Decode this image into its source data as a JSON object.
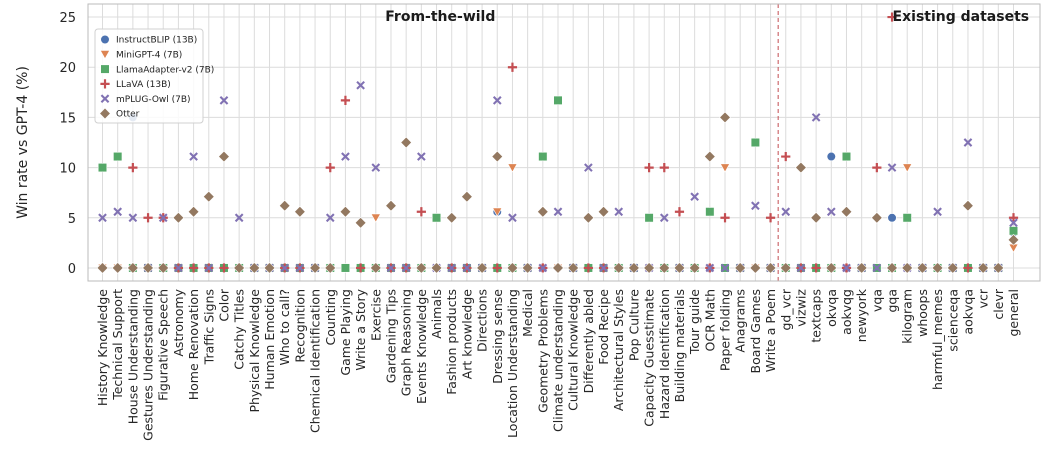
{
  "chart_data": {
    "type": "scatter",
    "ylabel": "Win rate vs GPT-4 (%)",
    "ylim": [
      -1.3,
      26.3
    ],
    "yticks": [
      0,
      5,
      10,
      15,
      20,
      25
    ],
    "grid": true,
    "legend_position": "top-left",
    "sections": [
      {
        "label": "From-the-wild"
      },
      {
        "label": "Existing datasets"
      }
    ],
    "divider_after": "Write a Poem",
    "divider_color": "#c44e52",
    "categories": [
      "History Knowledge",
      "Technical Support",
      "House Understanding",
      "Gestures Understanding",
      "Figurative Speech",
      "Astronomy",
      "Home Renovation",
      "Traffic Signs",
      "Color",
      "Catchy Titles",
      "Physical Knowledge",
      "Human Emotion",
      "Who to call?",
      "Recognition",
      "Chemical Identification",
      "Counting",
      "Game Playing",
      "Write a Story",
      "Exercise",
      "Gardening Tips",
      "Graph Reasoning",
      "Events Knowledge",
      "Animals",
      "Fashion products",
      "Art knowledge",
      "Directions",
      "Dressing sense",
      "Location Understanding",
      "Medical",
      "Geometry Problems",
      "Climate understanding",
      "Cultural Knowledge",
      "Differently abled",
      "Food Recipe",
      "Architectural Styles",
      "Pop Culture",
      "Capacity Guesstimate",
      "Hazard Identification",
      "Building materials",
      "Tour guide",
      "OCR Math",
      "Paper folding",
      "Anagrams",
      "Board Games",
      "Write a Poem",
      "gd_vcr",
      "vizwiz",
      "textcaps",
      "okvqa",
      "aokvqg",
      "newyork",
      "vqa",
      "gqa",
      "kilogram",
      "whoops",
      "harmful_memes",
      "scienceqa",
      "aokvqa",
      "vcr",
      "clevr",
      "general"
    ],
    "series": [
      {
        "name": "InstructBLIP (13B)",
        "color": "#4c72b0",
        "marker": "circle",
        "values": [
          0,
          0,
          15,
          0,
          0,
          0,
          0,
          0,
          0,
          0,
          0,
          0,
          0,
          0,
          0,
          0,
          0,
          0,
          0,
          0,
          0,
          0,
          0,
          0,
          0,
          0,
          5.6,
          0,
          0,
          0,
          0,
          0,
          0,
          0,
          0,
          0,
          0,
          0,
          0,
          0,
          0,
          0,
          0,
          0,
          0,
          0,
          0,
          0,
          11.1,
          0,
          0,
          0,
          5,
          0,
          0,
          0,
          0,
          0,
          0,
          0,
          3.5
        ]
      },
      {
        "name": "MiniGPT-4 (7B)",
        "color": "#dd8452",
        "marker": "triangle-down",
        "values": [
          0,
          0,
          0,
          0,
          0,
          0,
          0,
          0,
          0,
          0,
          0,
          0,
          0,
          0,
          0,
          0,
          0,
          0,
          5,
          0,
          0,
          0,
          0,
          0,
          0,
          0,
          5.6,
          10,
          0,
          0,
          0,
          0,
          0,
          0,
          0,
          0,
          0,
          0,
          0,
          0,
          0,
          10,
          0,
          0,
          0,
          0,
          0,
          0,
          0,
          0,
          0,
          0,
          0,
          10,
          0,
          0,
          0,
          0,
          0,
          0,
          2
        ]
      },
      {
        "name": "LlamaAdapter-v2 (7B)",
        "color": "#55a868",
        "marker": "square",
        "values": [
          10,
          11.1,
          0,
          0,
          0,
          0,
          0,
          0,
          0,
          0,
          0,
          0,
          0,
          0,
          0,
          0,
          0,
          0,
          0,
          0,
          0,
          0,
          5,
          0,
          0,
          0,
          0,
          0,
          0,
          11.1,
          16.7,
          0,
          0,
          0,
          0,
          0,
          5,
          0,
          0,
          0,
          5.6,
          0,
          0,
          12.5,
          0,
          0,
          0,
          0,
          0,
          11.1,
          0,
          0,
          0,
          5,
          0,
          0,
          0,
          0,
          0,
          0,
          3.7
        ]
      },
      {
        "name": "LLaVA (13B)",
        "color": "#c44e52",
        "marker": "plus",
        "values": [
          0,
          0,
          10,
          5,
          5,
          0,
          0,
          0,
          0,
          0,
          0,
          0,
          0,
          0,
          0,
          10,
          16.7,
          0,
          0,
          0,
          0,
          5.6,
          0,
          0,
          0,
          0,
          0,
          20,
          0,
          0,
          0,
          0,
          0,
          0,
          0,
          0,
          10,
          10,
          5.6,
          0,
          0,
          5,
          0,
          0,
          5,
          11.1,
          0,
          0,
          0,
          0,
          0,
          10,
          25,
          0,
          0,
          0,
          0,
          0,
          0,
          0,
          5
        ]
      },
      {
        "name": "mPLUG-Owl (7B)",
        "color": "#8172b3",
        "marker": "x",
        "values": [
          5,
          5.6,
          5,
          0,
          5,
          0,
          11.1,
          0,
          16.7,
          5,
          0,
          0,
          0,
          0,
          0,
          5,
          11.1,
          18.2,
          10,
          0,
          0,
          11.1,
          0,
          0,
          0,
          0,
          16.7,
          5,
          0,
          0,
          5.6,
          0,
          10,
          0,
          5.6,
          0,
          0,
          5,
          0,
          7.1,
          0,
          0,
          0,
          6.2,
          0,
          5.6,
          0,
          15,
          5.6,
          0,
          0,
          0,
          10,
          0,
          0,
          5.6,
          0,
          12.5,
          0,
          0,
          4.5
        ]
      },
      {
        "name": "Otter",
        "color": "#937860",
        "marker": "diamond",
        "values": [
          0,
          0,
          0,
          0,
          0,
          5,
          5.6,
          7.1,
          11.1,
          0,
          0,
          0,
          6.2,
          5.6,
          0,
          0,
          5.6,
          4.5,
          0,
          6.2,
          12.5,
          0,
          0,
          5,
          7.1,
          0,
          11.1,
          0,
          0,
          5.6,
          0,
          0,
          5,
          5.6,
          0,
          0,
          0,
          0,
          0,
          0,
          11.1,
          15,
          0,
          0,
          0,
          0,
          10,
          5,
          0,
          5.6,
          0,
          5,
          0,
          0,
          0,
          0,
          0,
          6.2,
          0,
          0,
          2.8
        ]
      }
    ]
  }
}
